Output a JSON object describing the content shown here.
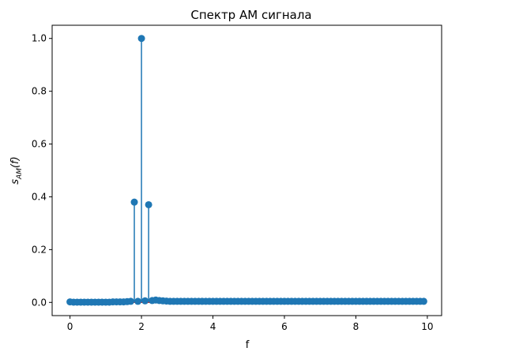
{
  "chart_data": {
    "type": "stem",
    "title": "Спектр АМ сигнала",
    "xlabel": "f",
    "ylabel": "s_AM(f)",
    "xlim": [
      -0.5,
      10.4
    ],
    "ylim": [
      -0.05,
      1.05
    ],
    "xticks": [
      0,
      2,
      4,
      6,
      8,
      10
    ],
    "yticks": [
      0.0,
      0.2,
      0.4,
      0.6,
      0.8,
      1.0
    ],
    "grid": false,
    "legend": "none",
    "x_start": 0.0,
    "x_step": 0.1,
    "values": [
      0.002,
      0.001,
      0.001,
      0.001,
      0.001,
      0.001,
      0.001,
      0.001,
      0.001,
      0.001,
      0.001,
      0.001,
      0.002,
      0.002,
      0.002,
      0.002,
      0.003,
      0.004,
      0.38,
      0.004,
      1.0,
      0.006,
      0.37,
      0.007,
      0.009,
      0.007,
      0.006,
      0.005,
      0.004,
      0.004,
      0.004,
      0.004,
      0.004,
      0.004,
      0.004,
      0.004,
      0.004,
      0.004,
      0.004,
      0.004,
      0.004,
      0.004,
      0.004,
      0.004,
      0.004,
      0.004,
      0.004,
      0.004,
      0.004,
      0.004,
      0.004,
      0.004,
      0.004,
      0.004,
      0.004,
      0.004,
      0.004,
      0.004,
      0.004,
      0.004,
      0.004,
      0.004,
      0.004,
      0.004,
      0.004,
      0.004,
      0.004,
      0.004,
      0.004,
      0.004,
      0.004,
      0.004,
      0.004,
      0.004,
      0.004,
      0.004,
      0.004,
      0.004,
      0.004,
      0.004,
      0.004,
      0.004,
      0.004,
      0.004,
      0.004,
      0.004,
      0.004,
      0.004,
      0.004,
      0.004,
      0.004,
      0.004,
      0.004,
      0.004,
      0.004,
      0.004,
      0.004,
      0.004,
      0.004,
      0.004
    ],
    "colors": {
      "stem": "#1f77b4",
      "marker": "#1f77b4",
      "baseline": "#d62728"
    }
  }
}
